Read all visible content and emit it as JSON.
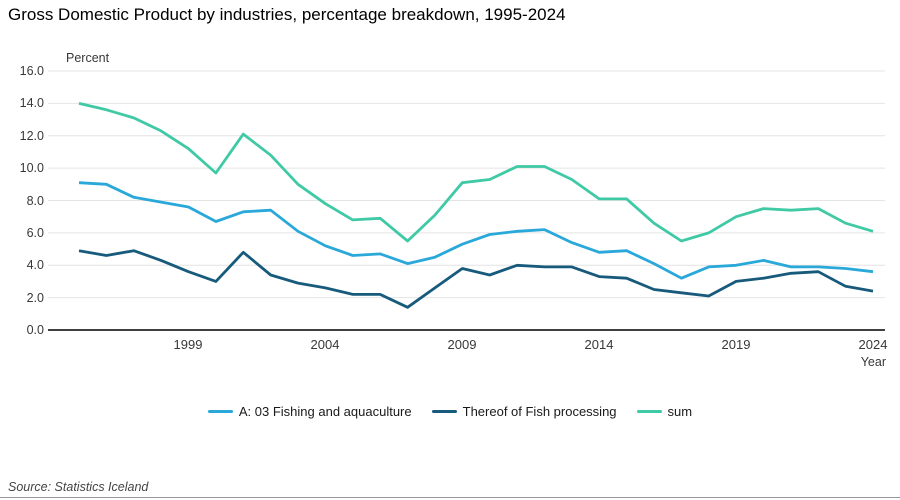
{
  "title": "Gross Domestic Product by industries, percentage breakdown, 1995-2024",
  "source": "Source: Statistics Iceland",
  "chart_data": {
    "type": "line",
    "title": "Gross Domestic Product by industries, percentage breakdown, 1995-2024",
    "ylabel": "Percent",
    "xlabel": "Year",
    "ylim": [
      0,
      16
    ],
    "ytick_step": 2,
    "yticks": [
      "16.0",
      "14.0",
      "12.0",
      "10.0",
      "8.0",
      "6.0",
      "4.0",
      "2.0",
      "0.0"
    ],
    "xticks": [
      "1999",
      "2004",
      "2009",
      "2014",
      "2019",
      "2024"
    ],
    "grid": true,
    "legend_position": "bottom-center",
    "x": [
      1995,
      1996,
      1997,
      1998,
      1999,
      2000,
      2001,
      2002,
      2003,
      2004,
      2005,
      2006,
      2007,
      2008,
      2009,
      2010,
      2011,
      2012,
      2013,
      2014,
      2015,
      2016,
      2017,
      2018,
      2019,
      2020,
      2021,
      2022,
      2023,
      2024
    ],
    "series": [
      {
        "name": "A: 03 Fishing and aquaculture",
        "color": "#29A8D9",
        "values": [
          9.1,
          9.0,
          8.2,
          7.9,
          7.6,
          6.7,
          7.3,
          7.4,
          6.1,
          5.2,
          4.6,
          4.7,
          4.1,
          4.5,
          5.3,
          5.9,
          6.1,
          6.2,
          5.4,
          4.8,
          4.9,
          4.1,
          3.2,
          3.9,
          4.0,
          4.3,
          3.9,
          3.9,
          3.8,
          3.6
        ]
      },
      {
        "name": "Thereof of Fish processing",
        "color": "#175A7C",
        "values": [
          4.9,
          4.6,
          4.9,
          4.3,
          3.6,
          3.0,
          4.8,
          3.4,
          2.9,
          2.6,
          2.2,
          2.2,
          1.4,
          2.6,
          3.8,
          3.4,
          4.0,
          3.9,
          3.9,
          3.3,
          3.2,
          2.5,
          2.3,
          2.1,
          3.0,
          3.2,
          3.5,
          3.6,
          2.7,
          2.4
        ]
      },
      {
        "name": "sum",
        "color": "#3FC9A5",
        "values": [
          14.0,
          13.6,
          13.1,
          12.3,
          11.2,
          9.7,
          12.1,
          10.8,
          9.0,
          7.8,
          6.8,
          6.9,
          5.5,
          7.1,
          9.1,
          9.3,
          10.1,
          10.1,
          9.3,
          8.1,
          8.1,
          6.6,
          5.5,
          6.0,
          7.0,
          7.5,
          7.4,
          7.5,
          6.6,
          6.1
        ]
      }
    ],
    "colors": {
      "grid": "#e4e4e4",
      "axis": "#000000",
      "divider": "#999999"
    }
  }
}
